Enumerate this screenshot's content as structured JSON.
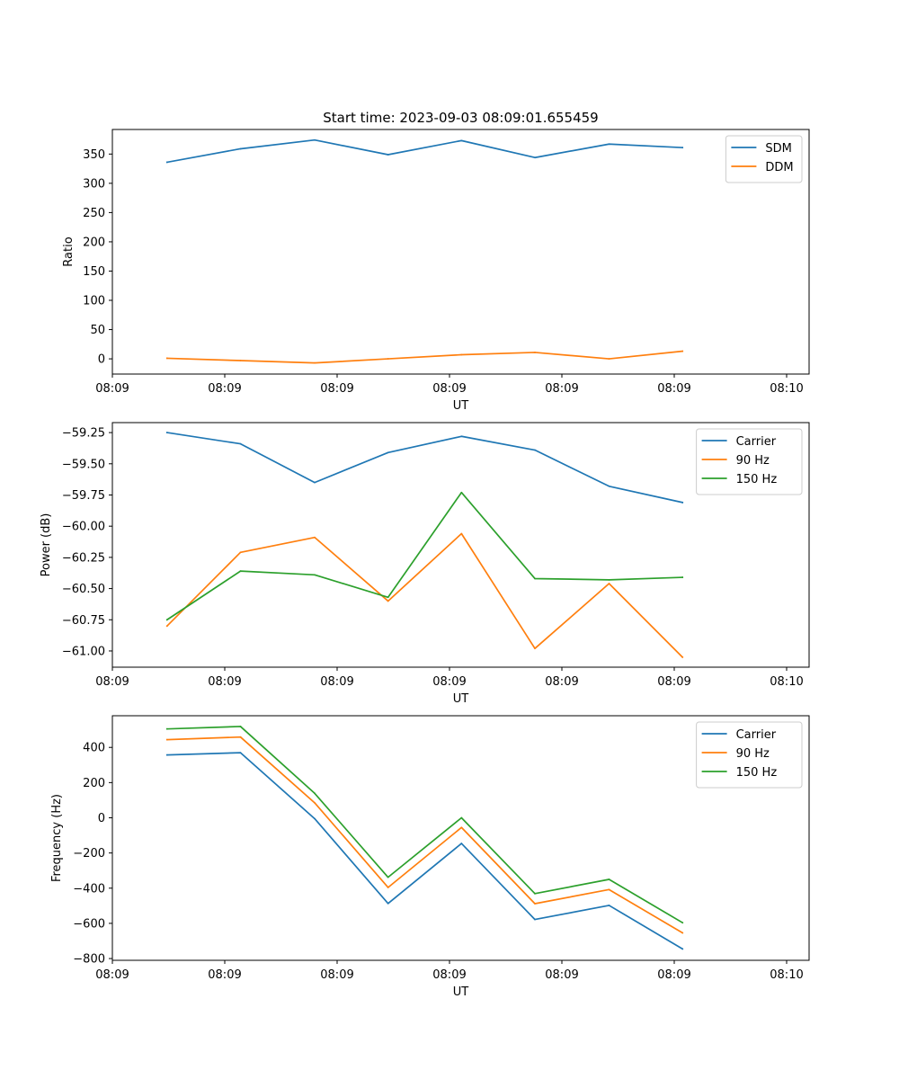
{
  "figure_title": "Start time: 2023-09-03 08:09:01.655459",
  "colors": {
    "c0": "#1f77b4",
    "c1": "#ff7f0e",
    "c2": "#2ca02c"
  },
  "chart_data": [
    {
      "type": "line",
      "title": "Start time: 2023-09-03 08:09:01.655459",
      "xlabel": "UT",
      "ylabel": "Ratio",
      "xlim": [
        0,
        9.3
      ],
      "ylim": [
        -26,
        392
      ],
      "xticks": [
        0.0,
        1.5,
        3.0,
        4.5,
        6.0,
        7.5,
        9.0
      ],
      "xtick_labels": [
        "08:09",
        "08:09",
        "08:09",
        "08:09",
        "08:09",
        "08:09",
        "08:10"
      ],
      "yticks": [
        0,
        50,
        100,
        150,
        200,
        250,
        300,
        350
      ],
      "ytick_labels": [
        "0",
        "50",
        "100",
        "150",
        "200",
        "250",
        "300",
        "350"
      ],
      "legend_position": "top-right",
      "x": [
        0.73,
        1.71,
        2.7,
        3.68,
        4.66,
        5.64,
        6.63,
        7.61
      ],
      "series": [
        {
          "name": "SDM",
          "color": "#1f77b4",
          "values": [
            336,
            359,
            374,
            349,
            373,
            344,
            367,
            361
          ]
        },
        {
          "name": "DDM",
          "color": "#ff7f0e",
          "values": [
            1,
            -3,
            -7,
            0,
            7,
            11,
            0,
            13
          ]
        }
      ]
    },
    {
      "type": "line",
      "title": "",
      "xlabel": "UT",
      "ylabel": "Power (dB)",
      "xlim": [
        0,
        9.3
      ],
      "ylim": [
        -61.13,
        -59.17
      ],
      "xticks": [
        0.0,
        1.5,
        3.0,
        4.5,
        6.0,
        7.5,
        9.0
      ],
      "xtick_labels": [
        "08:09",
        "08:09",
        "08:09",
        "08:09",
        "08:09",
        "08:09",
        "08:10"
      ],
      "yticks": [
        -61.0,
        -60.75,
        -60.5,
        -60.25,
        -60.0,
        -59.75,
        -59.5,
        -59.25
      ],
      "ytick_labels": [
        "−61.00",
        "−60.75",
        "−60.50",
        "−60.25",
        "−60.00",
        "−59.75",
        "−59.50",
        "−59.25"
      ],
      "legend_position": "top-right",
      "x": [
        0.73,
        1.71,
        2.7,
        3.68,
        4.66,
        5.64,
        6.63,
        7.61
      ],
      "series": [
        {
          "name": "Carrier",
          "color": "#1f77b4",
          "values": [
            -59.25,
            -59.34,
            -59.65,
            -59.41,
            -59.28,
            -59.39,
            -59.68,
            -59.81
          ]
        },
        {
          "name": "90 Hz",
          "color": "#ff7f0e",
          "values": [
            -60.8,
            -60.21,
            -60.09,
            -60.6,
            -60.06,
            -60.98,
            -60.46,
            -61.05
          ]
        },
        {
          "name": "150 Hz",
          "color": "#2ca02c",
          "values": [
            -60.75,
            -60.36,
            -60.39,
            -60.57,
            -59.73,
            -60.42,
            -60.43,
            -60.41
          ]
        }
      ]
    },
    {
      "type": "line",
      "title": "",
      "xlabel": "UT",
      "ylabel": "Frequency (Hz)",
      "xlim": [
        0,
        9.3
      ],
      "ylim": [
        -810,
        580
      ],
      "xticks": [
        0.0,
        1.5,
        3.0,
        4.5,
        6.0,
        7.5,
        9.0
      ],
      "xtick_labels": [
        "08:09",
        "08:09",
        "08:09",
        "08:09",
        "08:09",
        "08:09",
        "08:10"
      ],
      "yticks": [
        -800,
        -600,
        -400,
        -200,
        0,
        200,
        400
      ],
      "ytick_labels": [
        "−800",
        "−600",
        "−400",
        "−200",
        "0",
        "200",
        "400"
      ],
      "legend_position": "top-right",
      "x": [
        0.73,
        1.71,
        2.7,
        3.68,
        4.66,
        5.64,
        6.63,
        7.61
      ],
      "series": [
        {
          "name": "Carrier",
          "color": "#1f77b4",
          "values": [
            357,
            370,
            -5,
            -487,
            -146,
            -578,
            -498,
            -745
          ]
        },
        {
          "name": "90 Hz",
          "color": "#ff7f0e",
          "values": [
            444,
            459,
            85,
            -396,
            -55,
            -488,
            -408,
            -654
          ]
        },
        {
          "name": "150 Hz",
          "color": "#2ca02c",
          "values": [
            505,
            519,
            139,
            -338,
            0,
            -431,
            -350,
            -596
          ]
        }
      ]
    }
  ]
}
